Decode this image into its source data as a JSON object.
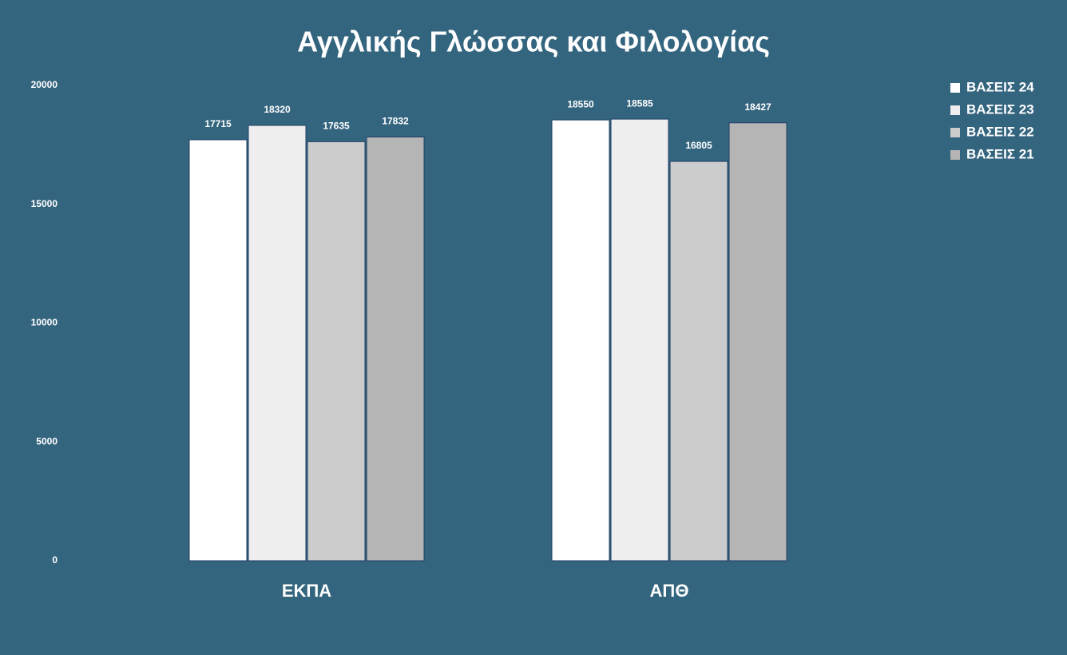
{
  "chart_data": {
    "type": "bar",
    "title": "Αγγλικής Γλώσσας και Φιλολογίας",
    "categories": [
      "ΕΚΠΑ",
      "ΑΠΘ"
    ],
    "series": [
      {
        "name": "ΒΑΣΕΙΣ 24",
        "color": "#ffffff",
        "values": [
          17715,
          18550
        ]
      },
      {
        "name": "ΒΑΣΕΙΣ 23",
        "color": "#eeeeee",
        "values": [
          18320,
          18585
        ]
      },
      {
        "name": "ΒΑΣΕΙΣ 22",
        "color": "#cccccc",
        "values": [
          17635,
          16805
        ]
      },
      {
        "name": "ΒΑΣΕΙΣ 21",
        "color": "#b5b5b5",
        "values": [
          17832,
          18427
        ]
      }
    ],
    "ylim": [
      0,
      20000
    ],
    "yticks": [
      0,
      5000,
      10000,
      15000,
      20000
    ],
    "grid": false,
    "legend": "top-right"
  }
}
